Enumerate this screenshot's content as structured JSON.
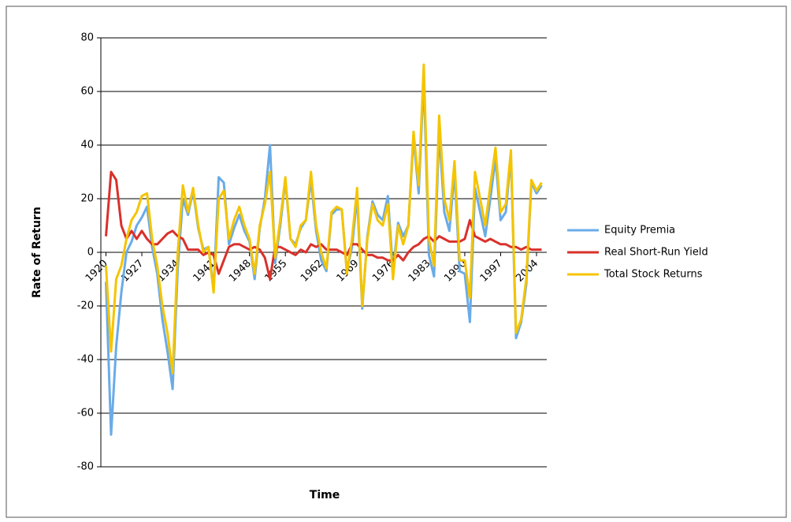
{
  "chart_data": {
    "type": "line",
    "y_label": "Rate of Return",
    "x_label": "Time",
    "x": [
      1920,
      1921,
      1922,
      1923,
      1924,
      1925,
      1926,
      1927,
      1928,
      1929,
      1930,
      1931,
      1932,
      1933,
      1934,
      1935,
      1936,
      1937,
      1938,
      1939,
      1940,
      1941,
      1942,
      1943,
      1944,
      1945,
      1946,
      1947,
      1948,
      1949,
      1950,
      1951,
      1952,
      1953,
      1954,
      1955,
      1956,
      1957,
      1958,
      1959,
      1960,
      1961,
      1962,
      1963,
      1964,
      1965,
      1966,
      1967,
      1968,
      1969,
      1970,
      1971,
      1972,
      1973,
      1974,
      1975,
      1976,
      1977,
      1978,
      1979,
      1980,
      1981,
      1982,
      1983,
      1984,
      1985,
      1986,
      1987,
      1988,
      1989,
      1990,
      1991,
      1992,
      1993,
      1994,
      1995,
      1996,
      1997,
      1998,
      1999,
      2000,
      2001,
      2002,
      2003,
      2004,
      2005
    ],
    "series": [
      {
        "name": "Equity Premia",
        "color": "#6aabe8",
        "values": [
          -11,
          -68,
          -35,
          -15,
          0,
          4,
          10,
          13,
          17,
          2,
          -8,
          -25,
          -37,
          -51,
          -6,
          20,
          14,
          23,
          9,
          1,
          2,
          -14,
          28,
          26,
          3,
          9,
          14,
          8,
          4,
          -10,
          9,
          20,
          40,
          -4,
          10,
          27,
          5,
          3,
          9,
          12,
          27,
          8,
          -3,
          -7,
          14,
          16,
          16,
          -7,
          2,
          21,
          -21,
          6,
          19,
          14,
          12,
          21,
          -7,
          11,
          6,
          10,
          43,
          22,
          65,
          -1,
          -9,
          45,
          15,
          8,
          30,
          -7,
          -8,
          -26,
          24,
          15,
          6,
          20,
          35,
          12,
          15,
          36,
          -32,
          -26,
          -12,
          26,
          22,
          25
        ]
      },
      {
        "name": "Real Short-Run Yield",
        "color": "#d9312b",
        "values": [
          6,
          30,
          27,
          10,
          5,
          8,
          5,
          8,
          5,
          3,
          3,
          5,
          7,
          8,
          6,
          5,
          1,
          1,
          1,
          -1,
          0,
          -1,
          -8,
          -3,
          2,
          3,
          3,
          2,
          1,
          2,
          1,
          -2,
          -10,
          2,
          2,
          1,
          0,
          -1,
          1,
          0,
          3,
          2,
          3,
          1,
          1,
          1,
          0,
          -1,
          3,
          3,
          1,
          -1,
          -1,
          -2,
          -2,
          -3,
          -3,
          -1,
          -3,
          0,
          2,
          3,
          5,
          6,
          4,
          6,
          5,
          4,
          4,
          4,
          5,
          12,
          6,
          5,
          4,
          5,
          4,
          3,
          3,
          2,
          2,
          1,
          2,
          1,
          1,
          1
        ]
      },
      {
        "name": "Total Stock Returns",
        "color": "#f5c400",
        "values": [
          -5,
          -37,
          -10,
          -5,
          5,
          12,
          15,
          21,
          22,
          5,
          -5,
          -20,
          -30,
          -45,
          0,
          25,
          15,
          24,
          10,
          0,
          2,
          -15,
          20,
          23,
          5,
          12,
          17,
          10,
          5,
          -8,
          10,
          18,
          30,
          -2,
          12,
          28,
          5,
          2,
          10,
          12,
          30,
          10,
          0,
          -6,
          15,
          17,
          16,
          -8,
          5,
          24,
          -20,
          5,
          18,
          12,
          10,
          18,
          -10,
          10,
          3,
          10,
          45,
          25,
          70,
          5,
          -5,
          51,
          20,
          12,
          34,
          -3,
          -3,
          -17,
          30,
          20,
          10,
          25,
          39,
          15,
          18,
          38,
          -30,
          -25,
          -10,
          27,
          23,
          26
        ]
      }
    ],
    "xlim": [
      1919,
      2006
    ],
    "xticks": [
      1920,
      1927,
      1934,
      1941,
      1948,
      1955,
      1962,
      1969,
      1976,
      1983,
      1990,
      1997,
      2004
    ],
    "ylim": [
      -80,
      80
    ],
    "yticks": [
      -80,
      -60,
      -40,
      -20,
      0,
      20,
      40,
      60,
      80
    ],
    "grid": true,
    "legend": "right"
  }
}
